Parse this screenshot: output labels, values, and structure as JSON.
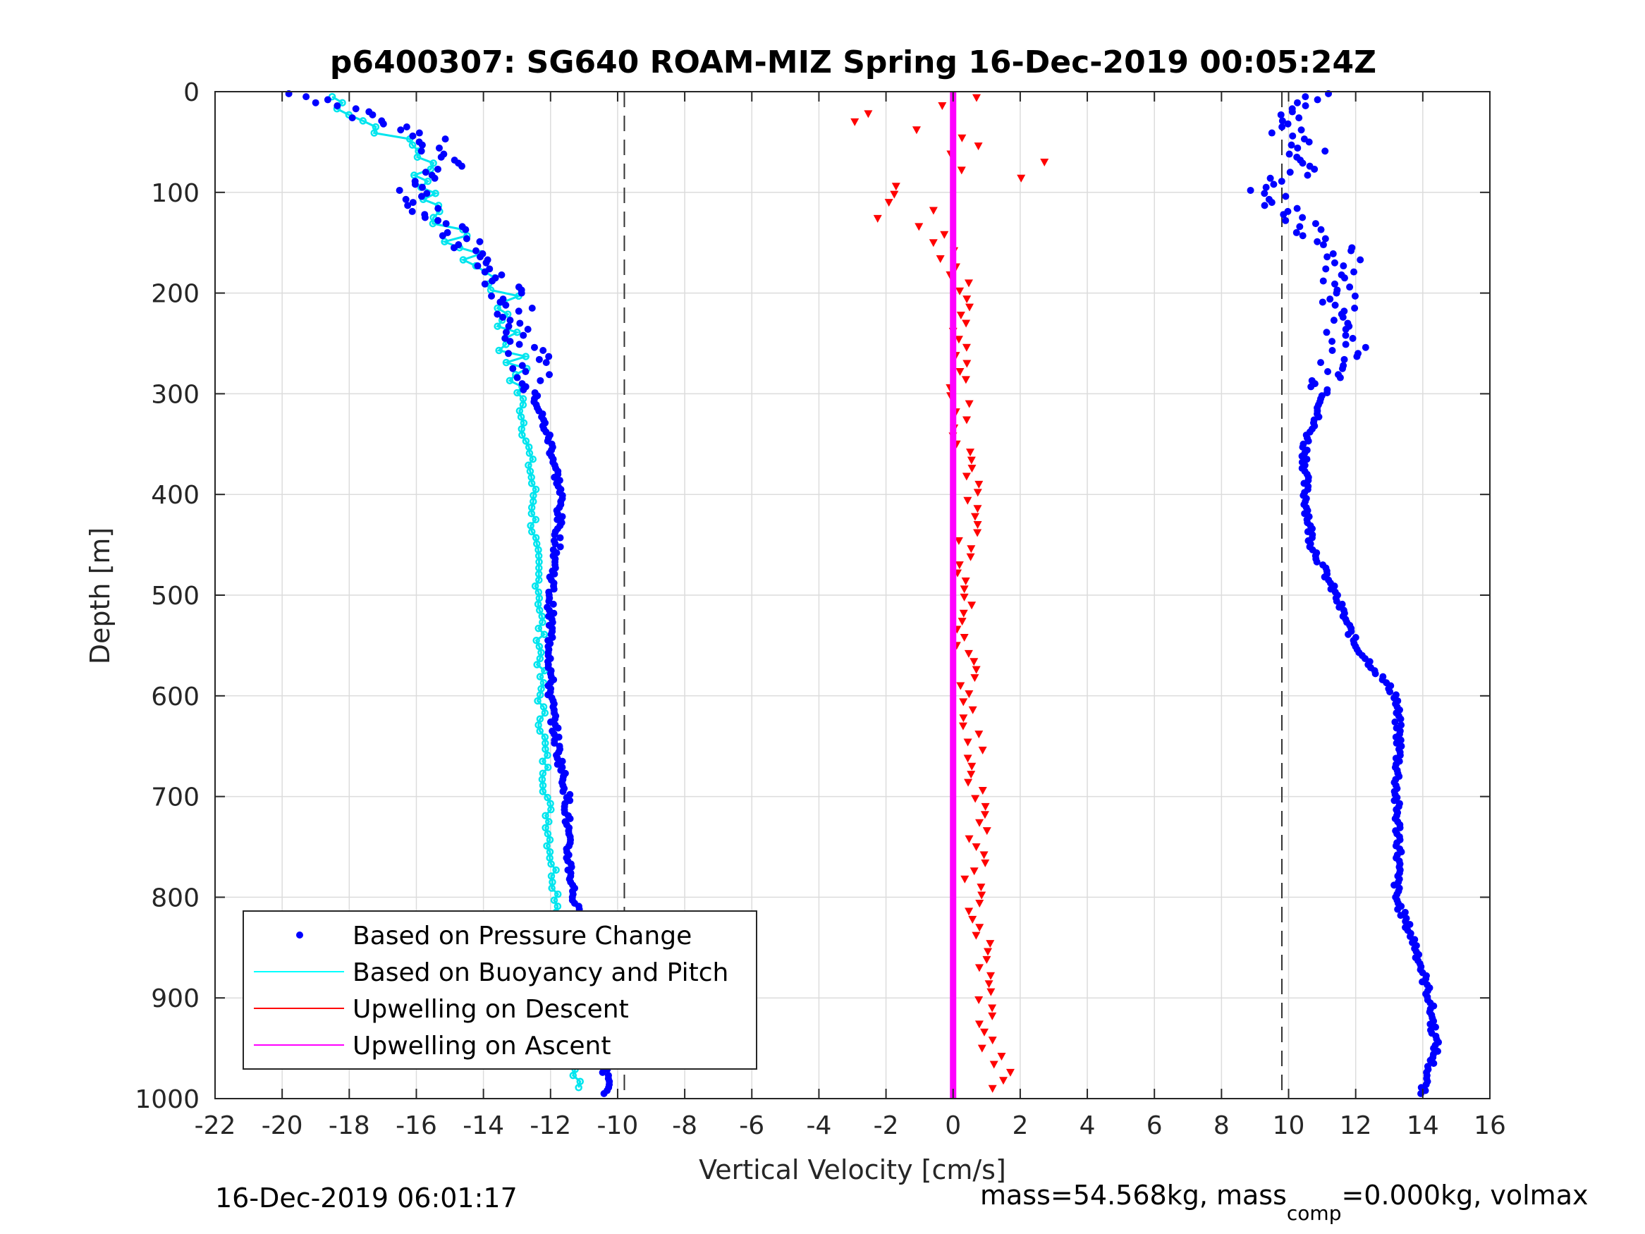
{
  "chart_data": {
    "type": "scatter",
    "title": "p6400307: SG640 ROAM-MIZ Spring 16-Dec-2019 00:05:24Z",
    "xlabel": "Vertical Velocity [cm/s]",
    "ylabel": "Depth [m]",
    "xlim": [
      -22,
      16
    ],
    "ylim": [
      1000,
      0
    ],
    "y_reversed": true,
    "grid": true,
    "x_ticks": [
      -22,
      -20,
      -18,
      -16,
      -14,
      -12,
      -10,
      -8,
      -6,
      -4,
      -2,
      0,
      2,
      4,
      6,
      8,
      10,
      12,
      14,
      16
    ],
    "y_ticks": [
      0,
      100,
      200,
      300,
      400,
      500,
      600,
      700,
      800,
      900,
      1000
    ],
    "x_tick_labels": [
      "-22",
      "-20",
      "-18",
      "-16",
      "-14",
      "-12",
      "-10",
      "-8",
      "-6",
      "-4",
      "-2",
      "0",
      "2",
      "4",
      "6",
      "8",
      "10",
      "12",
      "14",
      "16"
    ],
    "y_tick_labels": [
      "0",
      "100",
      "200",
      "300",
      "400",
      "500",
      "600",
      "700",
      "800",
      "900",
      "1000"
    ],
    "reference_lines_x": [
      -9.8,
      9.8
    ],
    "legend_placement": "bottom-left",
    "legend": [
      {
        "label": "Based on Pressure Change",
        "color": "#0000ff",
        "style": "dot"
      },
      {
        "label": "Based on Buoyancy and Pitch",
        "color": "#00ffff",
        "style": "line"
      },
      {
        "label": "Upwelling on Descent",
        "color": "#ff0000",
        "style": "line"
      },
      {
        "label": "Upwelling on Ascent",
        "color": "#ff00ff",
        "style": "line"
      }
    ],
    "colors": {
      "pressure": "#0000ff",
      "buoyancy": "#00e5ee",
      "descent": "#ff0000",
      "ascent": "#ff00ff"
    },
    "series": [
      {
        "name": "Based on Pressure Change",
        "description_depths": [
          0,
          10,
          30,
          50,
          70,
          100,
          130,
          160,
          200,
          250,
          300,
          350,
          400,
          450,
          500,
          550,
          600,
          650,
          700,
          750,
          800,
          850,
          900,
          950,
          1000
        ],
        "descent_x": [
          -20.0,
          -19.0,
          -17.0,
          -15.5,
          -15.0,
          -16.0,
          -15.3,
          -14.3,
          -13.3,
          -12.7,
          -12.5,
          -12.0,
          -11.7,
          -11.8,
          -12.0,
          -12.0,
          -12.0,
          -11.8,
          -11.5,
          -11.5,
          -11.3,
          -11.0,
          -10.6,
          -10.4,
          -10.3
        ],
        "ascent_x": [
          10.8,
          10.3,
          9.6,
          10.4,
          10.7,
          9.3,
          10.3,
          11.6,
          11.5,
          11.8,
          11.1,
          10.5,
          10.5,
          10.7,
          11.4,
          12.0,
          13.2,
          13.3,
          13.2,
          13.3,
          13.2,
          13.8,
          14.2,
          14.4,
          13.9
        ]
      },
      {
        "name": "Based on Buoyancy and Pitch",
        "depths": [
          5,
          30,
          60,
          100,
          150,
          200,
          250,
          300,
          350,
          400,
          450,
          500,
          550,
          600,
          650,
          700,
          750,
          800,
          850,
          900,
          950,
          990
        ],
        "x": [
          -18.5,
          -17.5,
          -15.8,
          -15.6,
          -14.8,
          -13.4,
          -13.2,
          -12.9,
          -12.7,
          -12.5,
          -12.5,
          -12.3,
          -12.3,
          -12.3,
          -12.2,
          -12.1,
          -12.0,
          -11.8,
          -11.6,
          -11.4,
          -11.3,
          -11.2
        ]
      },
      {
        "name": "Upwelling on Descent",
        "depths": [
          10,
          40,
          60,
          80,
          100,
          150,
          200,
          250,
          300,
          350,
          400,
          450,
          500,
          550,
          600,
          650,
          700,
          750,
          800,
          850,
          900,
          950,
          970,
          1000
        ],
        "x": [
          -0.8,
          -1.4,
          1.0,
          1.2,
          -0.8,
          -0.3,
          0.3,
          0.1,
          0.2,
          0.3,
          0.6,
          0.4,
          0.3,
          0.4,
          0.5,
          0.6,
          0.8,
          0.7,
          0.6,
          0.9,
          1.0,
          1.0,
          1.5,
          1.1
        ]
      },
      {
        "name": "Upwelling on Ascent",
        "depths": [
          0,
          1000
        ],
        "x": [
          0.0,
          0.0
        ]
      }
    ]
  },
  "footer": {
    "timestamp": "16-Dec-2019 06:01:17",
    "mass_text": "mass=54.568kg, mass",
    "mass_sub": "comp",
    "mass_rest": "=0.000kg, volmax"
  }
}
